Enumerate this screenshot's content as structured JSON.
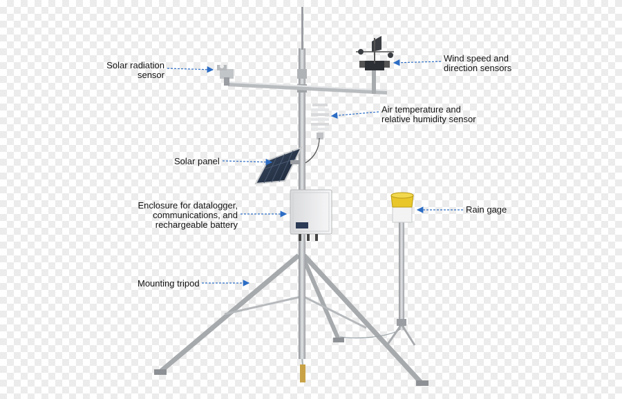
{
  "labels": {
    "solar_radiation": [
      "Solar radiation",
      "sensor"
    ],
    "wind": [
      "Wind speed and",
      "direction sensors"
    ],
    "air_temp": [
      "Air temperature and",
      "relative humidity sensor"
    ],
    "solar_panel": "Solar panel",
    "enclosure": [
      "Enclosure for datalogger,",
      "communications, and",
      "rechargeable battery"
    ],
    "rain_gage": "Rain gage",
    "tripod": "Mounting tripod"
  },
  "colors": {
    "arrow": "#2b6cc4",
    "metal": "#b9bcbf",
    "rain_funnel": "#e9c72a"
  }
}
